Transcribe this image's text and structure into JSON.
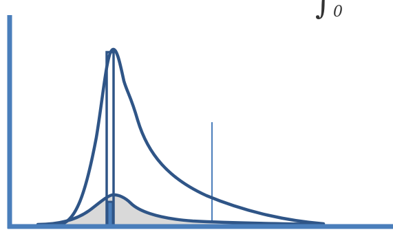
{
  "diagram": {
    "integral": {
      "symbol": "∫",
      "lower_limit": "0"
    },
    "colors": {
      "axis": "#4a7ebb",
      "curve": "#2f5587",
      "fill": "#d9d9d9",
      "marker_line": "#4a7ebb"
    },
    "icons": {
      "axes": "axes-icon",
      "tall_curve": "peak-curve-icon",
      "flat_curve": "flat-curve-icon",
      "bar": "bar-marker-icon"
    }
  }
}
